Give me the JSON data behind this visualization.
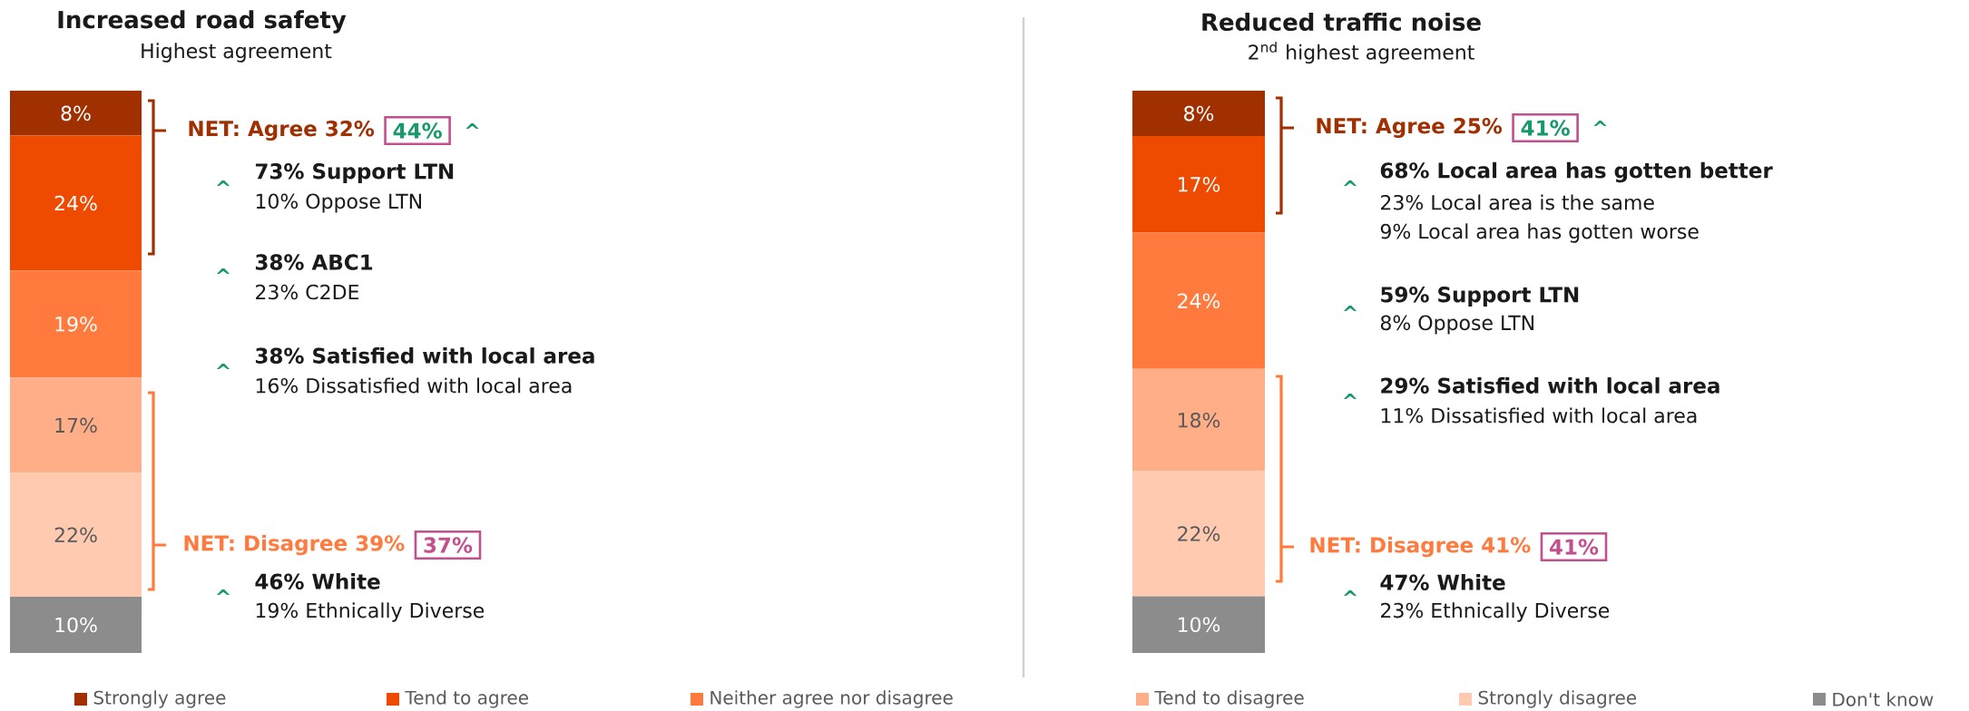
{
  "chart_data": [
    {
      "type": "bar",
      "title": "Increased road safety",
      "subtitle": "Highest agreement",
      "categories": [
        null
      ],
      "stacked": true,
      "legend": "bottom",
      "series": [
        {
          "name": "Don't know",
          "color": "#8c8c8c",
          "values": [
            10
          ],
          "value_labels": [
            "10%"
          ]
        },
        {
          "name": "Strongly disagree",
          "color": "#ffcab0",
          "values": [
            22
          ],
          "value_labels": [
            "22%"
          ]
        },
        {
          "name": "Tend to disagree",
          "color": "#ffae88",
          "values": [
            17
          ],
          "value_labels": [
            "17%"
          ]
        },
        {
          "name": "Neither agree nor disagree",
          "color": "#ff7a3c",
          "values": [
            19
          ],
          "value_labels": [
            "19%"
          ]
        },
        {
          "name": "Tend to agree",
          "color": "#ef4b00",
          "values": [
            24
          ],
          "value_labels": [
            "24%"
          ]
        },
        {
          "name": "Strongly agree",
          "color": "#a03000",
          "values": [
            8
          ],
          "value_labels": [
            "8%"
          ]
        }
      ],
      "annotations": [
        "NET: Agree 32%",
        "44%",
        "^",
        "^",
        "73% Support LTN",
        "10% Oppose LTN",
        "^",
        "38% ABC1",
        "23% C2DE",
        "^",
        "38% Satisfied with local area",
        "16% Dissatisfied with local area",
        "NET: Disagree 39%",
        "37%",
        "^",
        "46% White",
        "19% Ethnically Diverse"
      ]
    },
    {
      "type": "bar",
      "title": "Reduced traffic noise",
      "subtitle": "2$^{nd}$ highest agreement",
      "categories": [
        null
      ],
      "stacked": true,
      "series": [
        {
          "color": "#8c8c8c",
          "values": [
            10
          ],
          "value_labels": [
            "10%"
          ]
        },
        {
          "color": "#ffcab0",
          "values": [
            22
          ],
          "value_labels": [
            "22%"
          ]
        },
        {
          "color": "#ffae88",
          "values": [
            18
          ],
          "value_labels": [
            "18%"
          ]
        },
        {
          "color": "#ff7a3c",
          "values": [
            24
          ],
          "value_labels": [
            "24%"
          ]
        },
        {
          "color": "#ef4b00",
          "values": [
            17
          ],
          "value_labels": [
            "17%"
          ]
        },
        {
          "color": "#a03000",
          "values": [
            8
          ],
          "value_labels": [
            "8%"
          ]
        }
      ],
      "annotations": [
        "NET: Agree 25%",
        "41%",
        "^",
        "^",
        "68% Local area has gotten better",
        "23% Local area is the same",
        "9% Local area has gotten worse",
        "^",
        "59% Support LTN",
        "8% Oppose LTN",
        "^",
        "29% Satisfied with local area",
        "11% Dissatisfied with local area",
        "NET: Disagree 41%",
        "41%",
        "^",
        "47% White",
        "23% Ethnically Diverse"
      ]
    }
  ]
}
